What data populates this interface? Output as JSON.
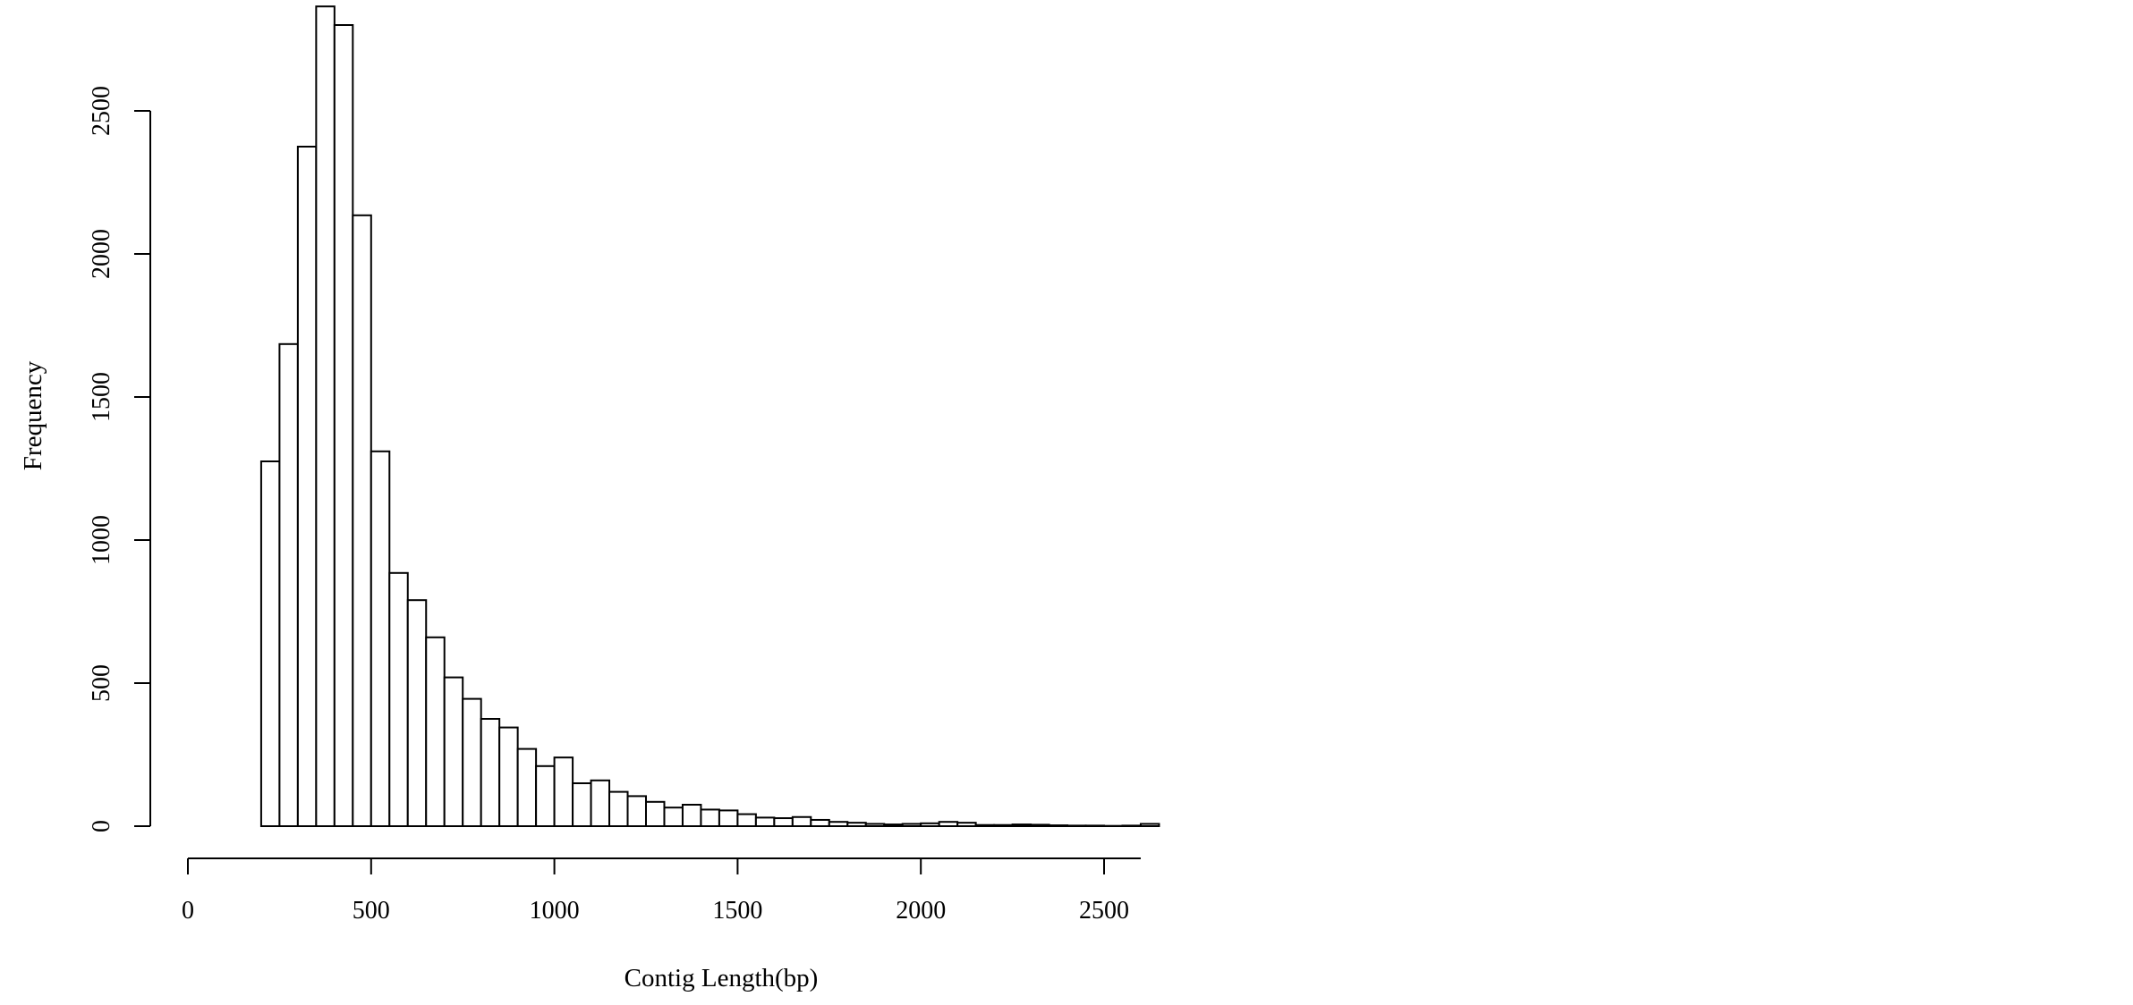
{
  "chart_data": {
    "type": "bar",
    "title": "",
    "xlabel": "Contig Length(bp)",
    "ylabel": "Frequency",
    "bin_width": 50,
    "bin_start": 200,
    "xlim": [
      0,
      2600
    ],
    "ylim": [
      0,
      2900
    ],
    "x_ticks": [
      0,
      500,
      1000,
      1500,
      2000,
      2500
    ],
    "y_ticks": [
      0,
      500,
      1000,
      1500,
      2000,
      2500
    ],
    "grid": false,
    "legend": "none",
    "bar_fill": "#ffffff",
    "bar_stroke": "#000000",
    "values": [
      1275,
      1685,
      2375,
      2865,
      2800,
      2135,
      1310,
      885,
      790,
      660,
      520,
      445,
      375,
      345,
      270,
      210,
      240,
      150,
      160,
      120,
      105,
      85,
      65,
      75,
      58,
      55,
      42,
      30,
      28,
      32,
      22,
      15,
      12,
      8,
      6,
      8,
      10,
      15,
      12,
      4,
      4,
      6,
      5,
      3,
      2,
      2,
      1,
      2,
      8
    ]
  }
}
